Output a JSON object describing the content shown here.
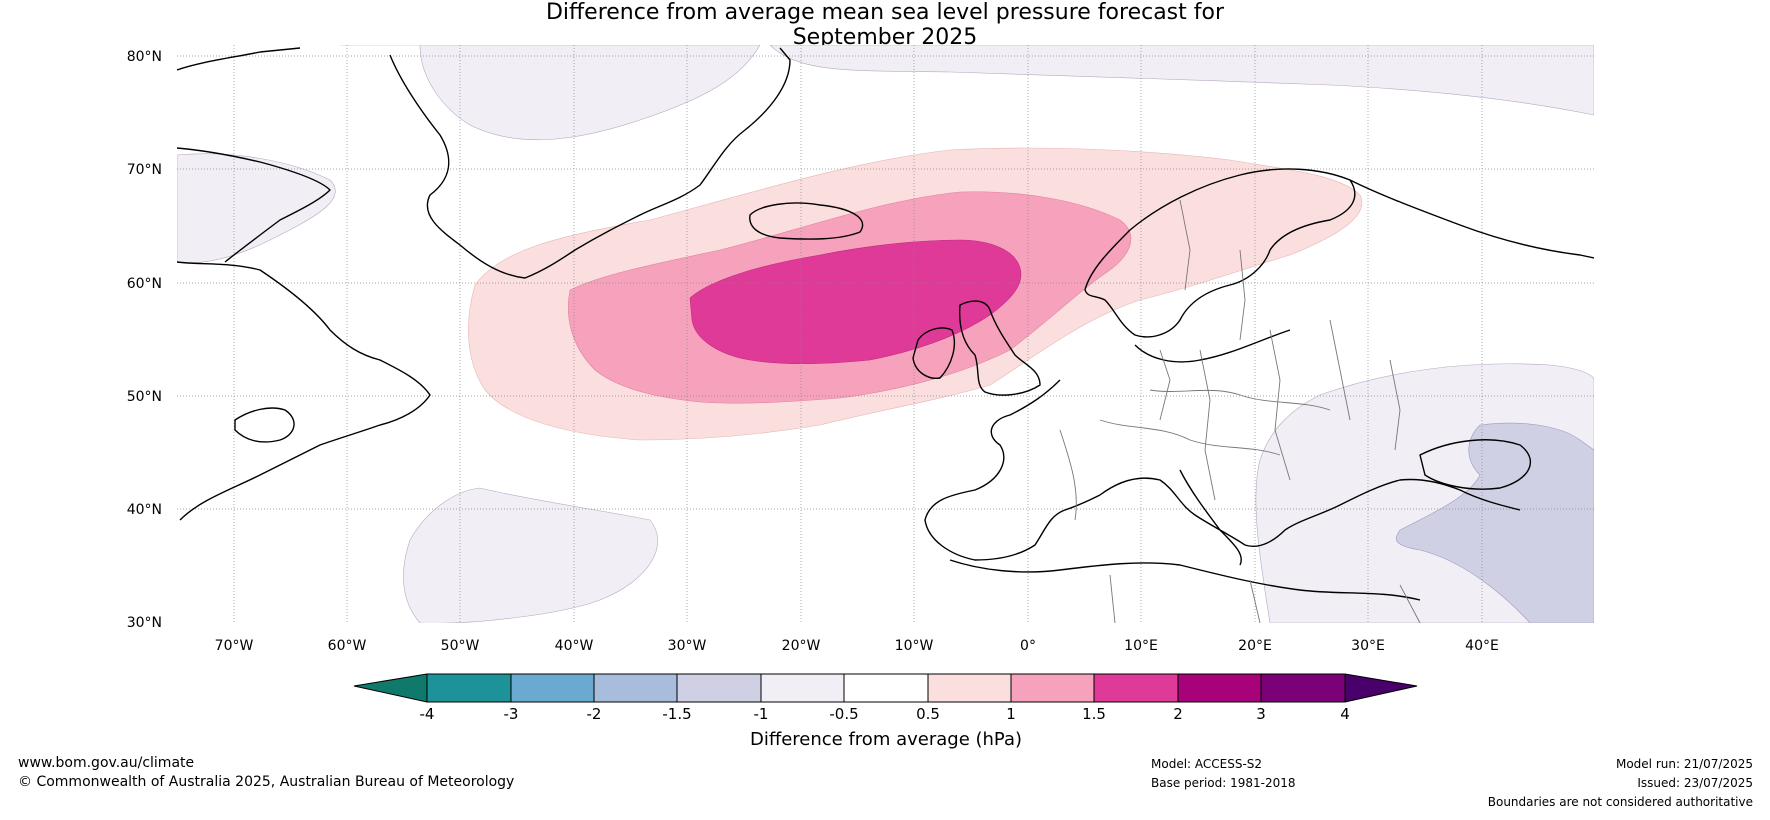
{
  "title": {
    "line1": "Difference from average mean sea level pressure forecast for",
    "line2": "September 2025"
  },
  "map": {
    "lat_labels": [
      "80°N",
      "70°N",
      "60°N",
      "50°N",
      "40°N",
      "30°N"
    ],
    "lon_labels": [
      "70°W",
      "60°W",
      "50°W",
      "40°W",
      "30°W",
      "20°W",
      "10°W",
      "0°",
      "10°E",
      "20°E",
      "30°E",
      "40°E"
    ],
    "extent": {
      "lon": [
        -75,
        50
      ],
      "lat": [
        30,
        81
      ]
    }
  },
  "colorbar": {
    "ticks": [
      "-4",
      "-3",
      "-2",
      "-1.5",
      "-1",
      "-0.5",
      "0.5",
      "1",
      "1.5",
      "2",
      "3",
      "4"
    ],
    "colors": [
      "#0f7a6b",
      "#1d9299",
      "#6aaad0",
      "#a8bcdb",
      "#d0d0e4",
      "#f1eef5",
      "#ffffff",
      "#fbdfdf",
      "#f6a2bc",
      "#df3a97",
      "#a7027a",
      "#7a0177",
      "#4a006a"
    ],
    "label": "Difference from average (hPa)"
  },
  "footer": {
    "website": "www.bom.gov.au/climate",
    "copyright": "© Commonwealth of Australia 2025, Australian Bureau of Meteorology",
    "model": "Model: ACCESS-S2",
    "base_period": "Base period: 1981-2018",
    "model_run": "Model run: 21/07/2025",
    "issued": "Issued: 23/07/2025",
    "disclaimer": "Boundaries are not considered authoritative"
  }
}
